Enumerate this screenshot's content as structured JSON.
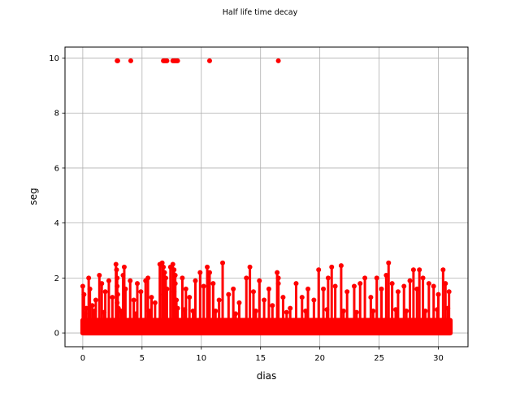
{
  "chart_data": {
    "type": "scatter",
    "title": "Half life time decay",
    "xlabel": "dias",
    "ylabel": "seg",
    "xlim": [
      -1.5,
      32.5
    ],
    "ylim": [
      -0.5,
      10.4
    ],
    "xticks": [
      0,
      5,
      10,
      15,
      20,
      25,
      30
    ],
    "yticks": [
      0,
      2,
      4,
      6,
      8,
      10
    ],
    "grid": true,
    "color": "#ff0000",
    "dense_band": {
      "x_range": [
        0,
        31
      ],
      "y_range": [
        0,
        0.55
      ]
    },
    "points": [
      [
        2.9,
        9.9
      ],
      [
        2.95,
        9.9
      ],
      [
        4.05,
        9.9
      ],
      [
        6.8,
        9.9
      ],
      [
        6.9,
        9.9
      ],
      [
        7.0,
        9.9
      ],
      [
        7.1,
        9.9
      ],
      [
        7.6,
        9.9
      ],
      [
        7.7,
        9.9
      ],
      [
        7.8,
        9.9
      ],
      [
        7.9,
        9.9
      ],
      [
        8.0,
        9.9
      ],
      [
        10.7,
        9.9
      ],
      [
        16.5,
        9.9
      ],
      [
        0.0,
        1.7
      ],
      [
        0.1,
        1.4
      ],
      [
        0.3,
        0.9
      ],
      [
        0.5,
        2.0
      ],
      [
        0.6,
        1.6
      ],
      [
        0.8,
        1.0
      ],
      [
        1.1,
        1.2
      ],
      [
        1.4,
        2.1
      ],
      [
        1.6,
        1.8
      ],
      [
        1.9,
        1.5
      ],
      [
        2.2,
        1.9
      ],
      [
        2.5,
        1.3
      ],
      [
        2.8,
        2.5
      ],
      [
        2.85,
        2.3
      ],
      [
        2.9,
        2.0
      ],
      [
        2.9,
        1.7
      ],
      [
        2.95,
        1.4
      ],
      [
        2.9,
        1.1
      ],
      [
        3.0,
        0.9
      ],
      [
        3.4,
        2.1
      ],
      [
        3.5,
        2.4
      ],
      [
        3.6,
        1.6
      ],
      [
        4.0,
        1.9
      ],
      [
        4.3,
        1.2
      ],
      [
        4.6,
        1.8
      ],
      [
        4.9,
        1.5
      ],
      [
        5.3,
        1.9
      ],
      [
        5.5,
        2.0
      ],
      [
        5.8,
        1.3
      ],
      [
        6.1,
        1.1
      ],
      [
        6.5,
        2.5
      ],
      [
        6.7,
        2.55
      ],
      [
        6.8,
        2.4
      ],
      [
        6.9,
        2.2
      ],
      [
        7.0,
        2.0
      ],
      [
        6.9,
        1.7
      ],
      [
        6.8,
        1.4
      ],
      [
        7.0,
        1.1
      ],
      [
        6.9,
        0.9
      ],
      [
        7.1,
        1.6
      ],
      [
        7.4,
        2.4
      ],
      [
        7.6,
        2.5
      ],
      [
        7.7,
        2.3
      ],
      [
        7.8,
        2.1
      ],
      [
        7.8,
        1.8
      ],
      [
        7.7,
        1.5
      ],
      [
        7.9,
        1.2
      ],
      [
        8.0,
        0.9
      ],
      [
        8.4,
        2.0
      ],
      [
        8.7,
        1.6
      ],
      [
        9.0,
        1.3
      ],
      [
        9.5,
        1.9
      ],
      [
        9.9,
        2.2
      ],
      [
        10.2,
        1.7
      ],
      [
        10.5,
        2.4
      ],
      [
        10.7,
        2.2
      ],
      [
        11.0,
        1.8
      ],
      [
        11.5,
        1.2
      ],
      [
        11.8,
        2.55
      ],
      [
        12.3,
        1.4
      ],
      [
        12.7,
        1.6
      ],
      [
        13.2,
        1.1
      ],
      [
        13.8,
        2.0
      ],
      [
        14.1,
        2.4
      ],
      [
        14.4,
        1.5
      ],
      [
        14.9,
        1.9
      ],
      [
        15.3,
        1.2
      ],
      [
        15.7,
        1.6
      ],
      [
        16.0,
        1.0
      ],
      [
        16.4,
        2.2
      ],
      [
        16.5,
        2.0
      ],
      [
        16.5,
        1.8
      ],
      [
        16.9,
        1.3
      ],
      [
        17.5,
        0.9
      ],
      [
        18.0,
        1.8
      ],
      [
        18.5,
        1.3
      ],
      [
        19.0,
        1.6
      ],
      [
        19.5,
        1.2
      ],
      [
        19.9,
        2.3
      ],
      [
        20.3,
        1.6
      ],
      [
        20.7,
        2.0
      ],
      [
        21.0,
        2.4
      ],
      [
        21.3,
        1.7
      ],
      [
        21.8,
        2.45
      ],
      [
        22.3,
        1.5
      ],
      [
        22.9,
        1.7
      ],
      [
        23.4,
        1.8
      ],
      [
        23.8,
        2.0
      ],
      [
        24.3,
        1.3
      ],
      [
        24.8,
        2.0
      ],
      [
        25.2,
        1.6
      ],
      [
        25.6,
        2.1
      ],
      [
        25.8,
        2.55
      ],
      [
        26.1,
        1.8
      ],
      [
        26.6,
        1.5
      ],
      [
        27.1,
        1.7
      ],
      [
        27.6,
        1.9
      ],
      [
        27.9,
        2.3
      ],
      [
        28.2,
        1.6
      ],
      [
        28.4,
        2.3
      ],
      [
        28.7,
        2.0
      ],
      [
        29.2,
        1.8
      ],
      [
        29.6,
        1.7
      ],
      [
        30.0,
        1.4
      ],
      [
        30.4,
        2.3
      ],
      [
        30.6,
        1.8
      ],
      [
        30.9,
        1.5
      ],
      [
        0.2,
        0.7
      ],
      [
        1.0,
        0.8
      ],
      [
        1.8,
        0.75
      ],
      [
        3.2,
        0.8
      ],
      [
        4.5,
        0.7
      ],
      [
        5.6,
        0.8
      ],
      [
        8.6,
        0.85
      ],
      [
        9.3,
        0.8
      ],
      [
        11.2,
        0.8
      ],
      [
        12.9,
        0.7
      ],
      [
        14.6,
        0.8
      ],
      [
        17.2,
        0.75
      ],
      [
        18.8,
        0.8
      ],
      [
        20.6,
        0.85
      ],
      [
        22.0,
        0.8
      ],
      [
        23.1,
        0.75
      ],
      [
        24.5,
        0.8
      ],
      [
        26.4,
        0.85
      ],
      [
        27.3,
        0.8
      ],
      [
        28.9,
        0.8
      ],
      [
        29.9,
        0.85
      ],
      [
        30.8,
        0.9
      ]
    ]
  }
}
